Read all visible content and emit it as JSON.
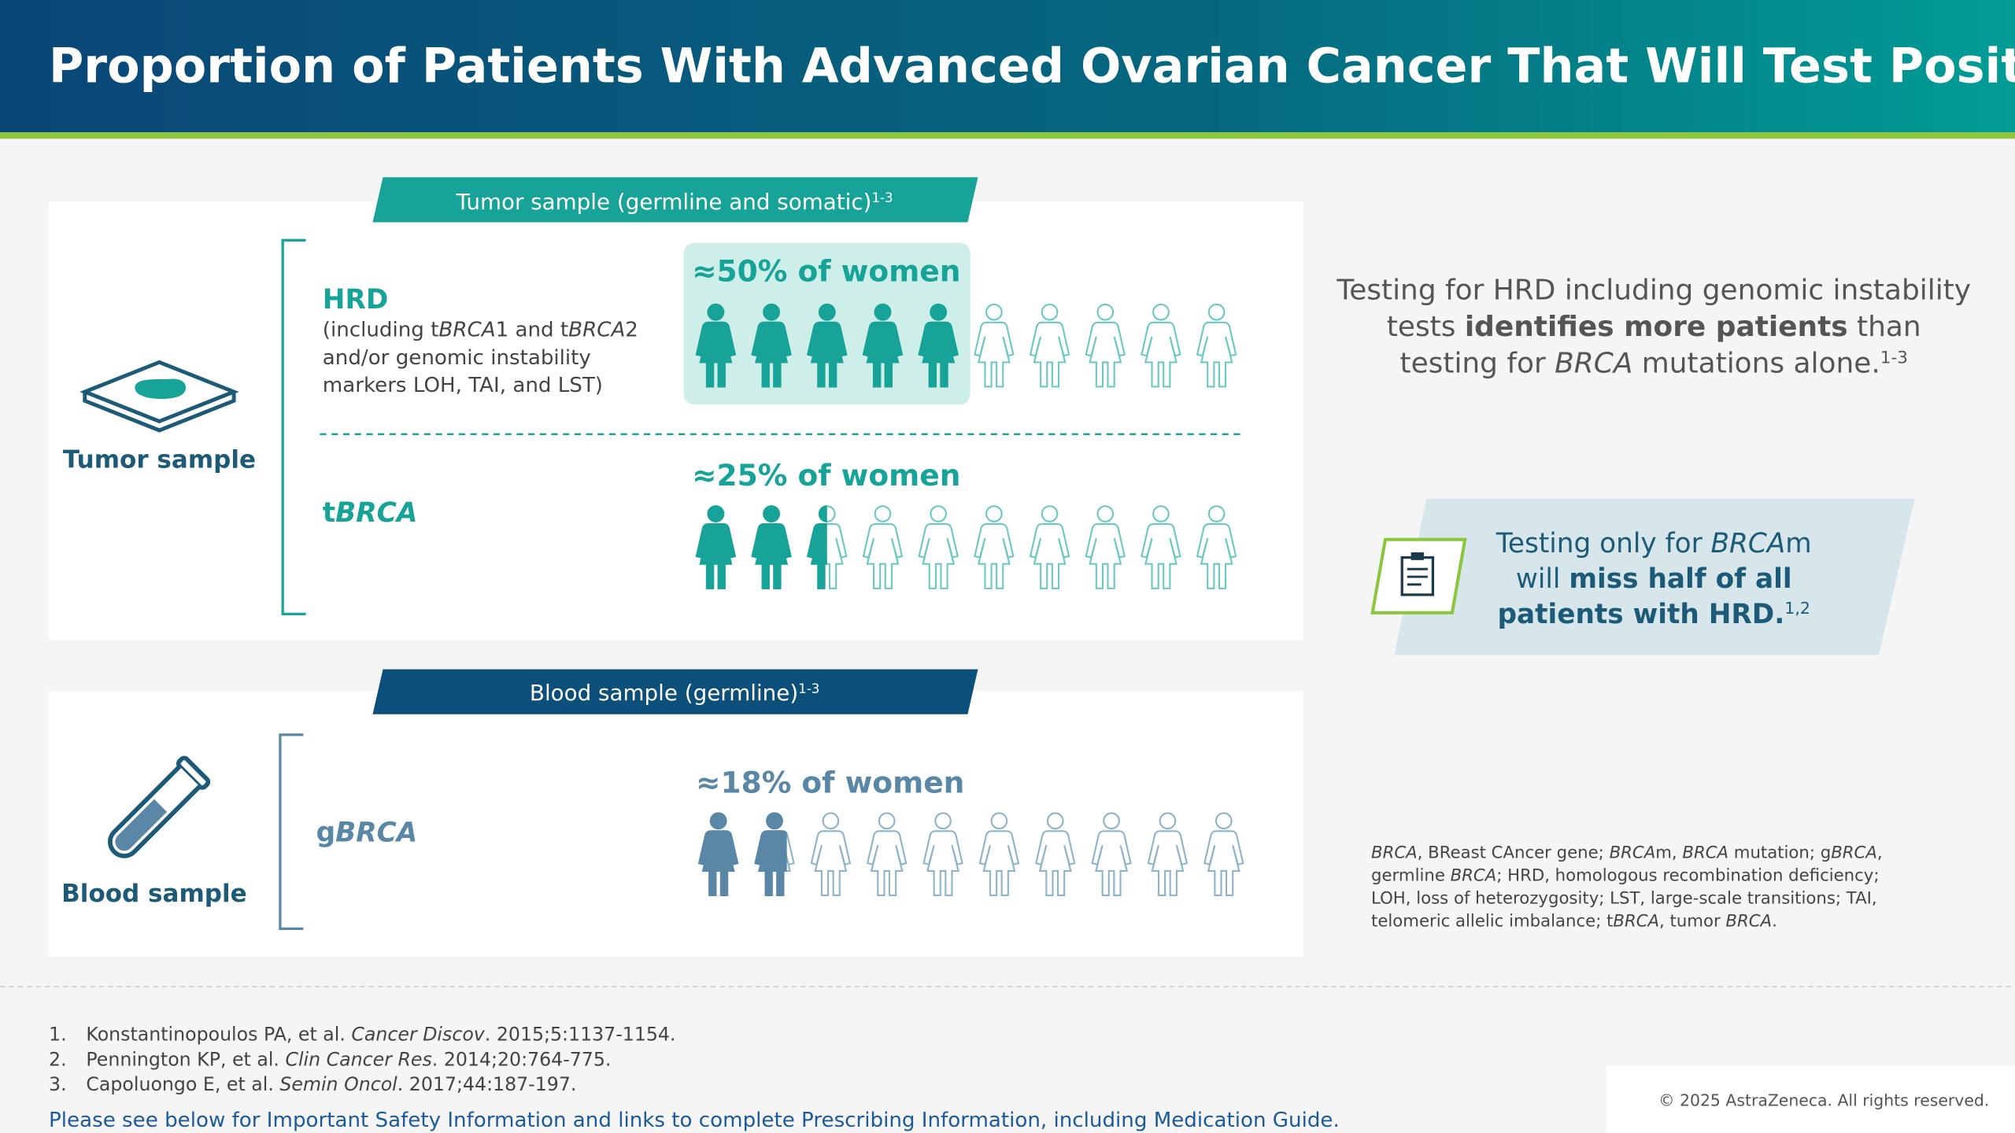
{
  "header": {
    "title": "Proportion of Patients With Advanced Ovarian Cancer That Will Test Positive"
  },
  "tumor": {
    "banner": [
      [
        {
          "t": "Tumor sample (germline and somatic)"
        },
        {
          "t": "1-3",
          "style": "sup"
        }
      ]
    ],
    "icon_label": "Tumor sample",
    "hrd": {
      "name": "HRD",
      "detail": [
        [
          {
            "t": "(including t"
          },
          {
            "t": "BRCA",
            "style": "italic"
          },
          {
            "t": "1 and t"
          },
          {
            "t": "BRCA",
            "style": "italic"
          },
          {
            "t": "2"
          }
        ],
        [
          {
            "t": "and/or genomic instability"
          }
        ],
        [
          {
            "t": "markers LOH, TAI, and LST)"
          }
        ]
      ],
      "stat": {
        "value": 50,
        "label": "≈50% of women"
      }
    },
    "tbrca": {
      "name": [
        [
          {
            "t": "t"
          },
          {
            "t": "BRCA",
            "style": "italic"
          }
        ]
      ],
      "stat": {
        "value": 25,
        "label": "≈25% of women"
      }
    }
  },
  "blood": {
    "banner": [
      [
        {
          "t": "Blood sample (germline)"
        },
        {
          "t": "1-3",
          "style": "sup"
        }
      ]
    ],
    "icon_label": "Blood sample",
    "gbrca": {
      "name": [
        [
          {
            "t": "g"
          },
          {
            "t": "BRCA",
            "style": "italic"
          }
        ]
      ],
      "stat": {
        "value": 18,
        "label": "≈18% of women"
      }
    }
  },
  "insight": [
    [
      {
        "t": "Testing for HRD including genomic instability"
      }
    ],
    [
      {
        "t": "tests "
      },
      {
        "t": "identifies more patients",
        "style": "bold"
      },
      {
        "t": " than"
      }
    ],
    [
      {
        "t": "testing for "
      },
      {
        "t": "BRCA",
        "style": "italic"
      },
      {
        "t": " mutations alone."
      },
      {
        "t": "1-3",
        "style": "sup"
      }
    ]
  ],
  "callout": [
    [
      {
        "t": "Testing only for "
      },
      {
        "t": "BRCA",
        "style": "italic"
      },
      {
        "t": "m"
      }
    ],
    [
      {
        "t": "will "
      },
      {
        "t": "miss half of all",
        "style": "bold"
      }
    ],
    [
      {
        "t": "patients with HRD.",
        "style": "bold"
      },
      {
        "t": "1,2",
        "style": "sup"
      }
    ]
  ],
  "abbreviations": [
    [
      {
        "t": "BRCA",
        "style": "italic"
      },
      {
        "t": ", BReast CAncer gene; "
      },
      {
        "t": "BRCA",
        "style": "italic"
      },
      {
        "t": "m, "
      },
      {
        "t": "BRCA",
        "style": "italic"
      },
      {
        "t": " mutation; g"
      },
      {
        "t": "BRCA",
        "style": "italic"
      },
      {
        "t": ","
      }
    ],
    [
      {
        "t": "germline "
      },
      {
        "t": "BRCA",
        "style": "italic"
      },
      {
        "t": "; HRD, homologous recombination deficiency;"
      }
    ],
    [
      {
        "t": "LOH, loss of heterozygosity; LST, large-scale transitions; TAI,"
      }
    ],
    [
      {
        "t": "telomeric allelic imbalance; t"
      },
      {
        "t": "BRCA",
        "style": "italic"
      },
      {
        "t": ", tumor "
      },
      {
        "t": "BRCA",
        "style": "italic"
      },
      {
        "t": "."
      }
    ]
  ],
  "references": [
    {
      "number": "1.",
      "text": [
        [
          {
            "t": "Konstantinopoulos PA, et al. "
          },
          {
            "t": "Cancer Discov",
            "style": "italic"
          },
          {
            "t": ". 2015;5:1137-1154."
          }
        ]
      ]
    },
    {
      "number": "2.",
      "text": [
        [
          {
            "t": "Pennington KP, et al. "
          },
          {
            "t": "Clin Cancer Res",
            "style": "italic"
          },
          {
            "t": ". 2014;20:764-775."
          }
        ]
      ]
    },
    {
      "number": "3.",
      "text": [
        [
          {
            "t": "Capoluongo E, et al. "
          },
          {
            "t": "Semin Oncol",
            "style": "italic"
          },
          {
            "t": ". 2017;44:187-197."
          }
        ]
      ]
    }
  ],
  "footer": {
    "link": "Please see below for Important Safety Information and links to complete Prescribing Information, including Medication Guide.",
    "copyright": "© 2025 AstraZeneca. All rights reserved."
  }
}
